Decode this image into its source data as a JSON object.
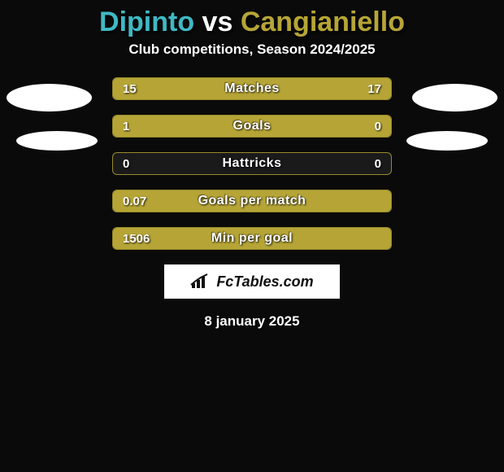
{
  "title": {
    "player1_name": "Dipinto",
    "vs": " vs ",
    "player2_name": "Cangianiello",
    "player1_color": "#3fb9c4",
    "player2_color": "#b6a536"
  },
  "subtitle": "Club competitions, Season 2024/2025",
  "background_color": "#0a0a0a",
  "bar_fill_color": "#b6a536",
  "bar_border_color": "#97892a",
  "stats": [
    {
      "label": "Matches",
      "left_value": "15",
      "right_value": "17",
      "left_pct": 46.9,
      "right_pct": 53.1
    },
    {
      "label": "Goals",
      "left_value": "1",
      "right_value": "0",
      "left_pct": 77.0,
      "right_pct": 23.0
    },
    {
      "label": "Hattricks",
      "left_value": "0",
      "right_value": "0",
      "left_pct": 0,
      "right_pct": 0
    },
    {
      "label": "Goals per match",
      "left_value": "0.07",
      "right_value": "",
      "left_pct": 100,
      "right_pct": 0
    },
    {
      "label": "Min per goal",
      "left_value": "1506",
      "right_value": "",
      "left_pct": 100,
      "right_pct": 0
    }
  ],
  "footer": {
    "logo_text": "FcTables.com",
    "date": "8 january 2025"
  },
  "avatars": {
    "left_ellipse_color": "#ffffff",
    "right_ellipse_color": "#ffffff"
  }
}
